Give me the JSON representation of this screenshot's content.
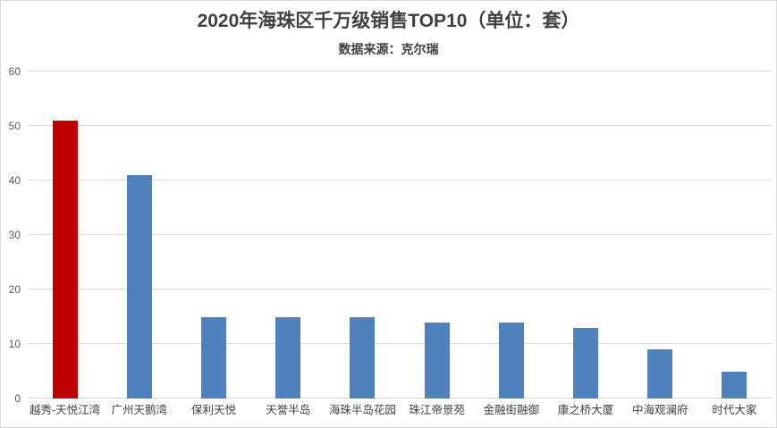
{
  "colors": {
    "bar_default": "#4F81BD",
    "bar_highlight": "#C00000",
    "gridline": "#D9D9D9",
    "axis_label": "#595959",
    "category_label": "#404040",
    "title_text": "#404040",
    "border": "#D9D9D9",
    "background": "#FFFFFF"
  },
  "chart_data": {
    "type": "bar",
    "title": "2020年海珠区千万级销售TOP10（单位：套）",
    "subtitle": "数据来源：克尔瑞",
    "categories": [
      "越秀-天悦江湾",
      "广州天鹅湾",
      "保利天悦",
      "天誉半岛",
      "海珠半岛花园",
      "珠江帝景苑",
      "金融街融御",
      "康之桥大厦",
      "中海观澜府",
      "时代大家"
    ],
    "values": [
      51,
      41,
      15,
      15,
      15,
      14,
      14,
      13,
      9,
      5
    ],
    "highlight_index": 0,
    "xlabel": "",
    "ylabel": "",
    "ylim": [
      0,
      60
    ],
    "yticks": [
      0,
      10,
      20,
      30,
      40,
      50,
      60
    ],
    "grid": true,
    "legend": "none"
  }
}
